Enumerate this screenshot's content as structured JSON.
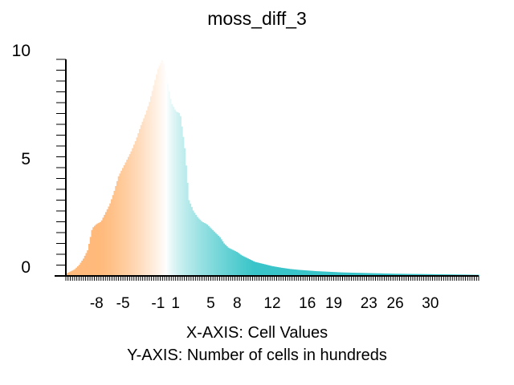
{
  "chart_data": {
    "type": "bar",
    "title": "moss_diff_3",
    "xlabel": "X-AXIS: Cell Values",
    "ylabel": "Y-AXIS: Number of cells in hundreds",
    "x_range": [
      -11.5,
      35.5
    ],
    "ylim": [
      0,
      10
    ],
    "y_tick_labels": [
      {
        "value": 10,
        "label": "10"
      },
      {
        "value": 5,
        "label": "5"
      },
      {
        "value": 0,
        "label": "0"
      }
    ],
    "x_tick_labels": [
      {
        "value": -8,
        "label": "-8"
      },
      {
        "value": -5,
        "label": "-5"
      },
      {
        "value": -1,
        "label": "-1"
      },
      {
        "value": 1,
        "label": "1"
      },
      {
        "value": 5,
        "label": "5"
      },
      {
        "value": 8,
        "label": "8"
      },
      {
        "value": 12,
        "label": "12"
      },
      {
        "value": 16,
        "label": "16"
      },
      {
        "value": 19,
        "label": "19"
      },
      {
        "value": 23,
        "label": "23"
      },
      {
        "value": 26,
        "label": "26"
      },
      {
        "value": 30,
        "label": "30"
      }
    ],
    "colors": {
      "low": "#ffb97a",
      "mid": "#ffffff",
      "high": "#38c4c8",
      "axis": "#000000"
    },
    "series": [
      {
        "x": [
          -11.5,
          -11,
          -10.5,
          -10,
          -9.5,
          -9,
          -8.5,
          -8,
          -7.5,
          -7,
          -6.5,
          -6,
          -5.5,
          -5,
          -4.5,
          -4,
          -3.5,
          -3,
          -2.5,
          -2,
          -1.5,
          -1,
          -0.5,
          0,
          0.5,
          1,
          1.5,
          2,
          2.5,
          3,
          3.5,
          4,
          4.5,
          5,
          5.5,
          6,
          6.5,
          7,
          7.5,
          8,
          8.5,
          9,
          9.5,
          10,
          11,
          12,
          13,
          14,
          15,
          16,
          17,
          18,
          19,
          20,
          22,
          24,
          26,
          28,
          30,
          32,
          34,
          35.5
        ],
        "values": [
          0.1,
          0.2,
          0.3,
          0.5,
          0.8,
          1.2,
          2.2,
          2.4,
          2.5,
          2.9,
          3.3,
          3.9,
          4.6,
          5.0,
          5.4,
          5.8,
          6.3,
          6.9,
          7.4,
          8.0,
          8.8,
          9.6,
          10.0,
          9.1,
          8.0,
          7.6,
          7.5,
          6.0,
          3.5,
          3.0,
          2.7,
          2.5,
          2.4,
          2.2,
          2.0,
          1.8,
          1.5,
          1.3,
          1.2,
          1.1,
          0.95,
          0.85,
          0.75,
          0.65,
          0.55,
          0.45,
          0.38,
          0.32,
          0.28,
          0.25,
          0.22,
          0.2,
          0.18,
          0.16,
          0.14,
          0.12,
          0.1,
          0.09,
          0.08,
          0.07,
          0.06,
          0.05
        ]
      }
    ]
  }
}
